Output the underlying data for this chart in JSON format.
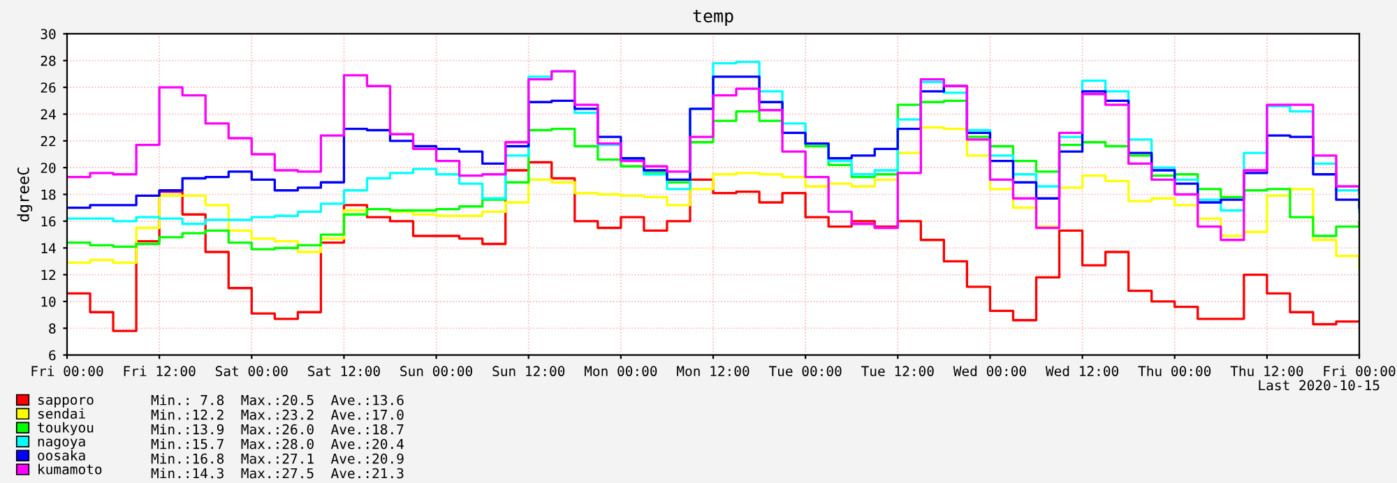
{
  "chart_data": {
    "type": "step",
    "title": "temp",
    "ylabel": "dgreeC",
    "categories": [
      "Fri 00:00",
      null,
      null,
      null,
      "Fri 12:00",
      null,
      null,
      null,
      "Sat 00:00",
      null,
      null,
      null,
      "Sat 12:00",
      null,
      null,
      null,
      "Sun 00:00",
      null,
      null,
      null,
      "Sun 12:00",
      null,
      null,
      null,
      "Mon 00:00",
      null,
      null,
      null,
      "Mon 12:00",
      null,
      null,
      null,
      "Tue 00:00",
      null,
      null,
      null,
      "Tue 12:00",
      null,
      null,
      null,
      "Wed 00:00",
      null,
      null,
      null,
      "Wed 12:00",
      null,
      null,
      null,
      "Thu 00:00",
      null,
      null,
      null,
      "Thu 12:00",
      null,
      null,
      null,
      "Fri 00:00"
    ],
    "ylim": [
      6,
      30
    ],
    "yticks": [
      6,
      8,
      10,
      12,
      14,
      16,
      18,
      20,
      22,
      24,
      26,
      28,
      30
    ],
    "grid": true,
    "legend": "bottom left",
    "line_style": "solid",
    "marker": "none",
    "series": [
      {
        "name": "sapporo",
        "color": "#ff0000",
        "values": [
          10.6,
          9.2,
          7.8,
          14.5,
          18.2,
          16.5,
          13.7,
          11.0,
          9.1,
          8.7,
          9.2,
          14.4,
          17.2,
          16.3,
          16.0,
          14.9,
          14.9,
          14.7,
          14.3,
          19.8,
          20.4,
          19.2,
          16.0,
          15.5,
          16.3,
          15.3,
          16.0,
          19.1,
          18.1,
          18.2,
          17.4,
          18.1,
          16.3,
          15.6,
          16.0,
          15.6,
          16.0,
          14.6,
          13.0,
          11.1,
          9.3,
          8.6,
          11.8,
          15.3,
          12.7,
          13.7,
          10.8,
          10.0,
          9.6,
          8.7,
          8.7,
          12.0,
          10.6,
          9.2,
          8.3,
          8.5,
          8.5
        ]
      },
      {
        "name": "sendai",
        "color": "#ffff00",
        "values": [
          12.9,
          13.1,
          12.9,
          15.5,
          17.9,
          17.9,
          17.2,
          15.3,
          14.7,
          14.5,
          13.7,
          14.7,
          16.8,
          16.9,
          16.7,
          16.5,
          16.4,
          16.4,
          16.7,
          17.4,
          19.1,
          18.9,
          18.1,
          18.0,
          17.9,
          17.8,
          17.2,
          18.4,
          19.5,
          19.6,
          19.5,
          19.3,
          18.6,
          18.8,
          18.6,
          19.1,
          21.1,
          23.0,
          22.9,
          20.9,
          18.4,
          17.0,
          15.6,
          18.5,
          19.4,
          19.0,
          17.5,
          17.7,
          17.2,
          16.2,
          14.9,
          15.2,
          17.9,
          18.4,
          14.6,
          13.4,
          12.4
        ]
      },
      {
        "name": "toukyou",
        "color": "#00ff00",
        "values": [
          14.4,
          14.2,
          14.1,
          14.3,
          14.8,
          15.1,
          15.3,
          14.4,
          13.9,
          14.0,
          14.2,
          15.0,
          16.5,
          16.9,
          16.8,
          16.8,
          16.9,
          17.1,
          17.6,
          18.9,
          22.8,
          22.9,
          21.6,
          20.6,
          20.1,
          19.6,
          18.9,
          21.9,
          23.5,
          24.2,
          23.5,
          22.6,
          21.6,
          20.2,
          19.3,
          19.5,
          24.7,
          24.9,
          25.0,
          22.3,
          21.6,
          20.5,
          19.7,
          21.7,
          21.9,
          21.6,
          20.9,
          19.4,
          19.5,
          18.4,
          17.8,
          18.3,
          18.4,
          16.3,
          14.9,
          15.6,
          15.9
        ]
      },
      {
        "name": "nagoya",
        "color": "#00ffff",
        "values": [
          16.2,
          16.2,
          16.0,
          16.3,
          16.2,
          15.8,
          16.1,
          16.1,
          16.3,
          16.4,
          16.7,
          17.3,
          18.3,
          19.2,
          19.6,
          19.9,
          19.5,
          18.8,
          17.7,
          20.9,
          26.8,
          27.2,
          24.1,
          21.7,
          20.6,
          19.5,
          18.4,
          24.4,
          27.8,
          27.9,
          25.7,
          23.3,
          21.8,
          20.5,
          19.5,
          19.8,
          23.6,
          26.4,
          25.6,
          22.8,
          20.9,
          19.5,
          18.6,
          22.3,
          26.5,
          25.7,
          22.1,
          20.0,
          19.1,
          17.6,
          16.8,
          21.1,
          24.6,
          24.2,
          20.3,
          18.3,
          16.7
        ]
      },
      {
        "name": "oosaka",
        "color": "#0000ff",
        "values": [
          17.0,
          17.2,
          17.2,
          17.9,
          18.3,
          19.2,
          19.3,
          19.7,
          19.1,
          18.3,
          18.5,
          18.9,
          22.9,
          22.8,
          22.0,
          21.6,
          21.4,
          21.2,
          20.3,
          21.6,
          24.9,
          25.0,
          24.4,
          22.3,
          20.7,
          19.8,
          19.1,
          24.4,
          26.8,
          26.8,
          24.9,
          22.6,
          21.8,
          20.7,
          20.9,
          21.4,
          22.9,
          25.7,
          26.1,
          22.6,
          20.5,
          18.9,
          17.7,
          21.2,
          25.7,
          25.0,
          21.1,
          19.8,
          18.8,
          17.4,
          17.6,
          19.6,
          22.4,
          22.3,
          19.5,
          17.6,
          17.0
        ]
      },
      {
        "name": "kumamoto",
        "color": "#ff00ff",
        "values": [
          19.3,
          19.6,
          19.5,
          21.7,
          26.0,
          25.4,
          23.3,
          22.2,
          21.0,
          19.8,
          19.7,
          22.4,
          26.9,
          26.1,
          22.5,
          21.4,
          20.5,
          19.4,
          19.5,
          21.9,
          26.6,
          27.2,
          24.7,
          21.8,
          20.5,
          20.1,
          19.7,
          22.3,
          25.4,
          25.9,
          24.3,
          21.2,
          19.3,
          16.7,
          15.8,
          15.5,
          19.6,
          26.6,
          26.1,
          22.1,
          19.1,
          17.7,
          15.5,
          22.6,
          25.5,
          24.7,
          20.3,
          19.1,
          18.0,
          15.6,
          14.6,
          19.8,
          24.7,
          24.7,
          20.9,
          18.6,
          18.1
        ]
      }
    ],
    "annotations": [
      "Min.: 7.8  Max.:20.5  Ave.:13.6",
      "Min.:12.2  Max.:23.2  Ave.:17.0",
      "Min.:13.9  Max.:26.0  Ave.:18.7",
      "Min.:15.7  Max.:28.0  Ave.:20.4",
      "Min.:16.8  Max.:27.1  Ave.:20.9",
      "Min.:14.3  Max.:27.5  Ave.:21.3",
      "Last 2020-10-15"
    ]
  }
}
